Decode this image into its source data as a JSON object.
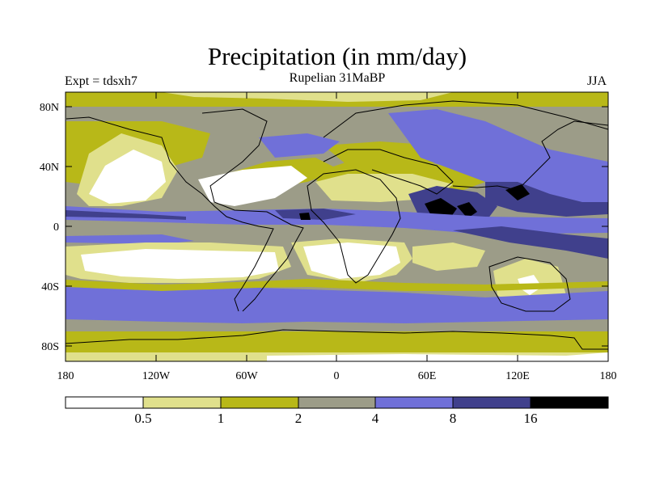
{
  "map": {
    "title": "Precipitation (in mm/day)",
    "expt_label": "Expt = tdsxh7",
    "subtitle": "Rupelian  31MaBP",
    "season": "JJA",
    "lat_labels": [
      "80N",
      "40N",
      "0",
      "40S",
      "80S"
    ],
    "lon_labels": [
      "180",
      "120W",
      "60W",
      "0",
      "60E",
      "120E",
      "180"
    ]
  },
  "legend": {
    "bins": [
      {
        "color": "#ffffff",
        "label": "0.5"
      },
      {
        "color": "#e0e08c",
        "label": "1"
      },
      {
        "color": "#b8b818",
        "label": "2"
      },
      {
        "color": "#9c9c88",
        "label": "4"
      },
      {
        "color": "#7070d8",
        "label": "8"
      },
      {
        "color": "#40408c",
        "label": "16"
      },
      {
        "color": "#000000",
        "label": ""
      }
    ]
  },
  "colors": {
    "white": "#ffffff",
    "pale": "#e0e08c",
    "olive": "#b8b818",
    "gray": "#9c9c88",
    "blue": "#7070d8",
    "navy": "#40408c",
    "black": "#000000"
  }
}
